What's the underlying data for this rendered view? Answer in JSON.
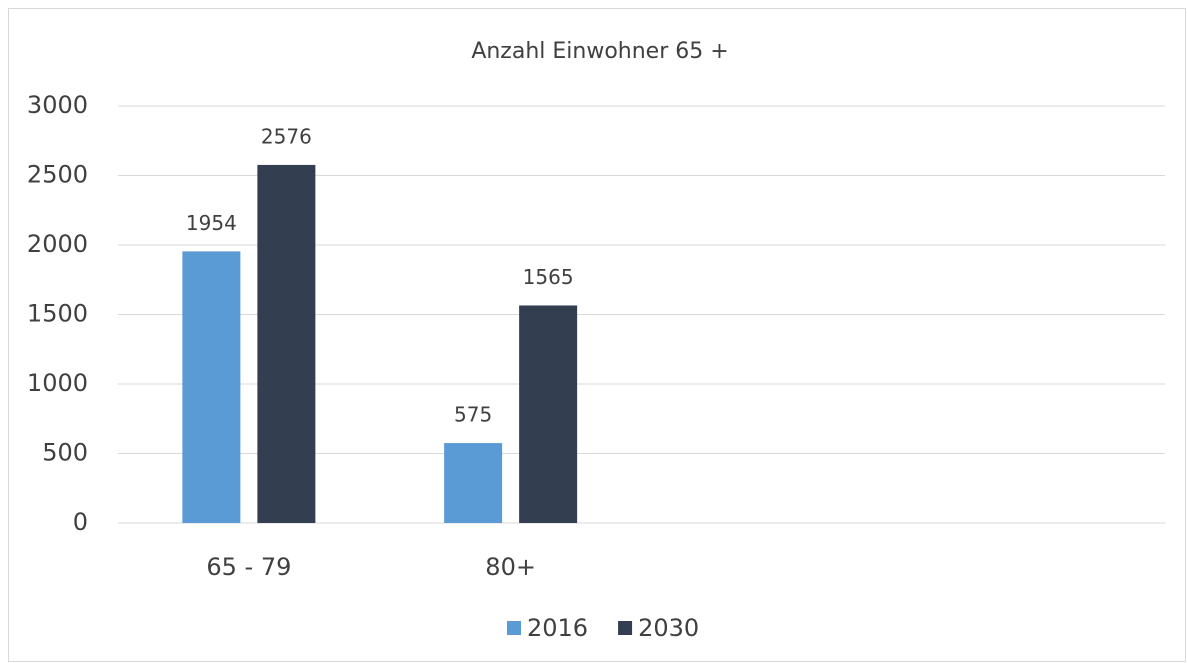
{
  "chart_data": {
    "type": "bar",
    "title": "Anzahl Einwohner 65 +",
    "categories": [
      "65 - 79",
      "80+",
      null,
      null
    ],
    "series": [
      {
        "name": "2016",
        "color": "#5b9bd5",
        "values": [
          1954,
          575,
          null,
          null
        ]
      },
      {
        "name": "2030",
        "color": "#333f50",
        "values": [
          2576,
          1565,
          null,
          null
        ]
      }
    ],
    "ylim": [
      0,
      3000
    ],
    "yticks": [
      0,
      500,
      1000,
      1500,
      2000,
      2500,
      3000
    ],
    "grid": true,
    "legend": "bottom",
    "data_labels": true
  }
}
